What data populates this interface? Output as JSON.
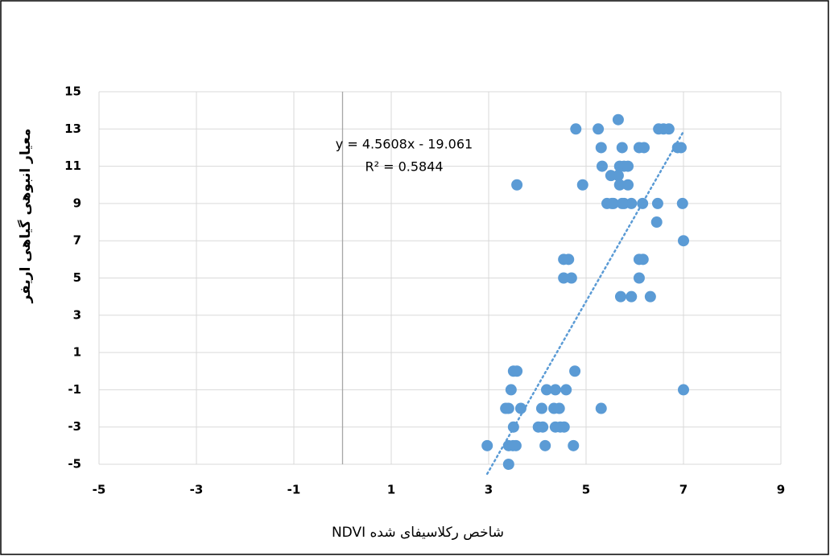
{
  "chart_data": {
    "type": "scatter",
    "x_label": "شاخص رکلاسیفای شده NDVI",
    "y_label": "معیار انبوهی گیاهی اریفر",
    "color": "#5b9bd5",
    "grid": true,
    "xlim": [
      -5,
      9
    ],
    "xticks": [
      -5,
      -3,
      -1,
      1,
      3,
      5,
      7,
      9
    ],
    "ylim": [
      -5,
      15
    ],
    "yticks": [
      -5,
      -3,
      -1,
      1,
      3,
      5,
      7,
      9,
      11,
      13,
      15
    ],
    "x": [
      4.79,
      5.25,
      5.66,
      6.49,
      6.59,
      6.7,
      5.31,
      5.74,
      6.09,
      6.19,
      6.88,
      6.95,
      5.33,
      5.69,
      5.78,
      5.86,
      5.51,
      5.66,
      3.58,
      4.93,
      5.69,
      5.86,
      5.43,
      5.56,
      5.78,
      5.93,
      6.16,
      6.47,
      6.98,
      5.74,
      5.53,
      6.45,
      7.0,
      4.54,
      4.64,
      6.09,
      6.17,
      4.54,
      4.7,
      6.09,
      5.71,
      5.93,
      6.32,
      3.51,
      3.58,
      4.77,
      3.46,
      4.19,
      4.37,
      4.59,
      7.0,
      3.35,
      3.41,
      3.66,
      4.09,
      4.34,
      4.45,
      5.31,
      3.51,
      4.02,
      4.11,
      4.37,
      4.47,
      4.55,
      2.97,
      3.56,
      3.41,
      3.5,
      4.16,
      4.74,
      3.41
    ],
    "values": [
      13,
      13,
      13.5,
      13,
      13,
      13,
      12,
      12,
      12,
      12,
      12,
      12,
      11,
      11,
      11,
      11,
      10.5,
      10.5,
      10,
      10,
      10,
      10,
      9,
      9,
      9,
      9,
      9,
      9,
      9,
      9,
      9,
      8,
      7,
      6,
      6,
      6,
      6,
      5,
      5,
      5,
      4,
      4,
      4,
      0,
      0,
      0,
      -1,
      -1,
      -1,
      -1,
      -1,
      -2,
      -2,
      -2,
      -2,
      -2,
      -2,
      -2,
      -3,
      -3,
      -3,
      -3,
      -3,
      -3,
      -4,
      -4,
      -4,
      -4,
      -4,
      -4,
      -5
    ],
    "trendline": {
      "equation": "y = 4.5608x - 19.061",
      "r2_label": "R² = 0.5844",
      "slope": 4.5608,
      "intercept": -19.061
    }
  }
}
